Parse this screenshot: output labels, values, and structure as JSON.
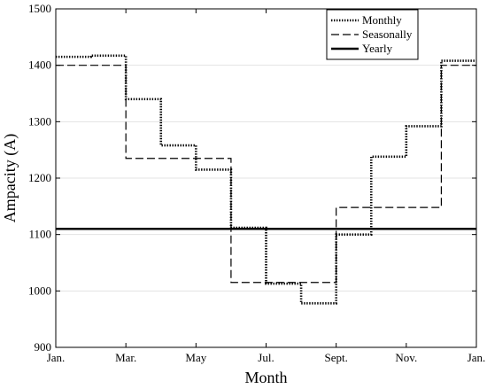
{
  "chart_data": {
    "type": "line",
    "xlabel": "Month",
    "ylabel": "Ampacity (A)",
    "xlim": [
      0,
      12
    ],
    "ylim": [
      900,
      1500
    ],
    "x_ticks": [
      {
        "x": 0,
        "label": "Jan."
      },
      {
        "x": 2,
        "label": "Mar."
      },
      {
        "x": 4,
        "label": "May"
      },
      {
        "x": 6,
        "label": "Jul."
      },
      {
        "x": 8,
        "label": "Sept."
      },
      {
        "x": 10,
        "label": "Nov."
      },
      {
        "x": 12,
        "label": "Jan."
      }
    ],
    "y_ticks": [
      900,
      1000,
      1100,
      1200,
      1300,
      1400,
      1500
    ],
    "grid": "horizontal",
    "legend_position": "top-right",
    "series": [
      {
        "name": "Monthly",
        "style": "dotted",
        "color": "#000000",
        "step": true,
        "values": [
          1415,
          1417,
          1340,
          1258,
          1215,
          1112,
          1013,
          978,
          1100,
          1238,
          1292,
          1408
        ]
      },
      {
        "name": "Seasonally",
        "style": "dashed",
        "color": "#000000",
        "step": true,
        "values": [
          1400,
          1400,
          1235,
          1235,
          1235,
          1015,
          1015,
          1015,
          1148,
          1148,
          1148,
          1400
        ]
      },
      {
        "name": "Yearly",
        "style": "solid",
        "color": "#000000",
        "step": true,
        "values": [
          1110,
          1110,
          1110,
          1110,
          1110,
          1110,
          1110,
          1110,
          1110,
          1110,
          1110,
          1110
        ]
      }
    ]
  }
}
